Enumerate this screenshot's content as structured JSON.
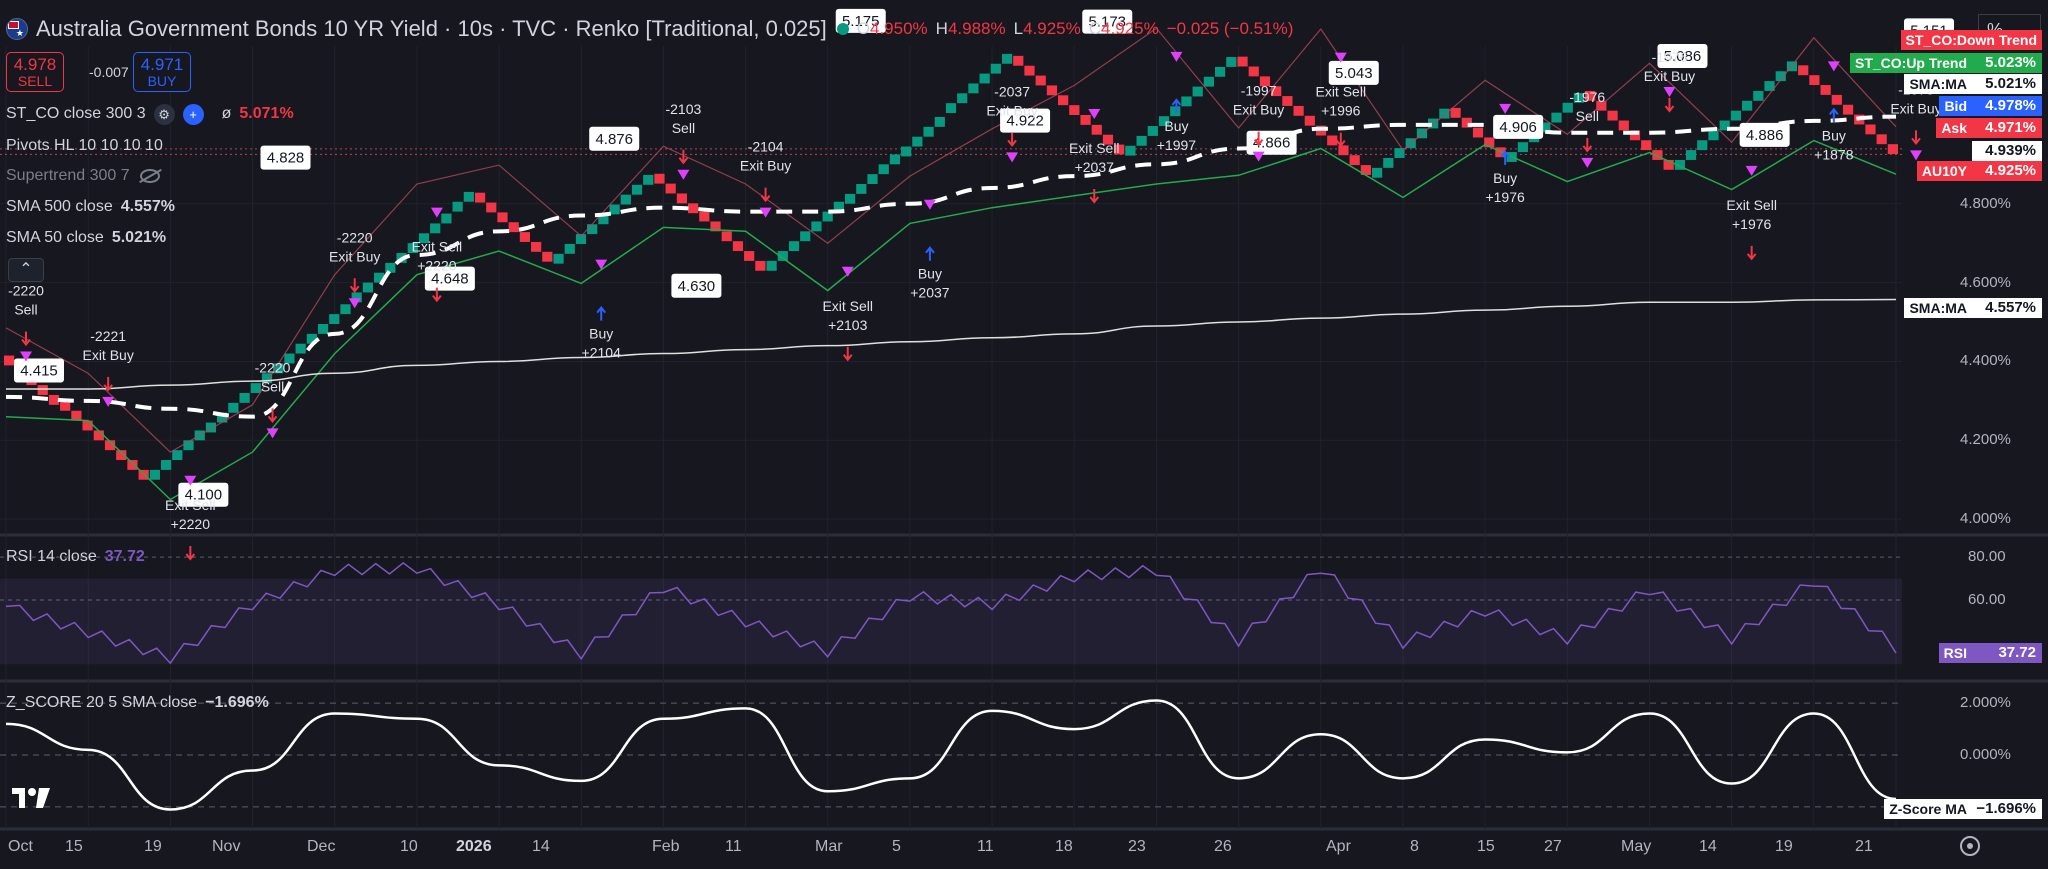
{
  "header": {
    "title": "Australia Government Bonds 10 YR Yield · 10s · TVC · Renko [Traditional, 0.025]",
    "ohlc": [
      {
        "label": "O",
        "value": "4.950%"
      },
      {
        "label": "H",
        "value": "4.988%"
      },
      {
        "label": "L",
        "value": "4.925%"
      },
      {
        "label": "C",
        "value": "4.925%"
      }
    ],
    "change": "−0.025 (−0.51%)"
  },
  "trade_box": {
    "sell_price": "4.978",
    "sell_label": "SELL",
    "spread": "-0.007",
    "buy_price": "4.971",
    "buy_label": "BUY"
  },
  "indicators": [
    {
      "name": "ST_CO close 300 3",
      "value": "5.071%",
      "value_color": "#f23645"
    },
    {
      "name": "Pivots HL 10 10 10 10",
      "value": ""
    },
    {
      "name": "Supertrend 300 7",
      "value": "",
      "muted": true
    },
    {
      "name": "SMA 500 close",
      "value": "4.557%"
    },
    {
      "name": "SMA 50 close",
      "value": "5.021%"
    }
  ],
  "toolbar": {
    "percent_label": "%"
  },
  "price_axis": {
    "ticks": [
      "4.800%",
      "4.600%",
      "4.400%",
      "4.200%",
      "4.000%"
    ],
    "tags": [
      {
        "name": "ST_CO:Down Trend",
        "value": "",
        "name_bg": "#f23645",
        "name_color": "#ffffff"
      },
      {
        "name": "ST_CO:Up Trend",
        "value": "5.023%",
        "name_bg": "#22ab4c",
        "name_color": "#ffffff",
        "value_bg": "#22ab4c"
      },
      {
        "name": "SMA:MA",
        "value": "5.021%",
        "name_bg": "#ffffff",
        "name_color": "#131722",
        "value_bg": "#ffffff",
        "value_color": "#131722"
      },
      {
        "name": "Bid",
        "value": "4.978%",
        "name_bg": "#2962ff",
        "name_color": "#ffffff",
        "value_bg": "#2962ff"
      },
      {
        "name": "Ask",
        "value": "4.971%",
        "name_bg": "#f23645",
        "name_color": "#ffffff",
        "value_bg": "#f23645"
      },
      {
        "name": "",
        "value": "4.939%",
        "value_bg": "#ffffff",
        "value_color": "#131722"
      },
      {
        "name": "AU10Y",
        "value": "4.925%",
        "name_bg": "#f23645",
        "name_color": "#ffffff",
        "value_bg": "#f23645"
      },
      {
        "name": "SMA:MA",
        "value": "4.557%",
        "name_bg": "#ffffff",
        "name_color": "#131722",
        "value_bg": "#ffffff",
        "value_color": "#131722"
      }
    ]
  },
  "rsi_pane": {
    "label": "RSI 14 close",
    "value": "37.72",
    "ticks": [
      "80.00",
      "60.00"
    ],
    "tag_name": "RSI",
    "tag_value": "37.72"
  },
  "zscore_pane": {
    "label": "Z_SCORE 20 5 SMA close",
    "value": "−1.696%",
    "ticks": [
      "2.000%",
      "0.000%",
      "−2.000%"
    ],
    "tag_name": "Z-Score MA",
    "tag_value": "−1.696%"
  },
  "time_axis": {
    "labels": [
      {
        "text": "Oct",
        "bold": false
      },
      {
        "text": "15",
        "bold": false
      },
      {
        "text": "19",
        "bold": false
      },
      {
        "text": "Nov",
        "bold": false
      },
      {
        "text": "Dec",
        "bold": false
      },
      {
        "text": "10",
        "bold": false
      },
      {
        "text": "2026",
        "bold": true
      },
      {
        "text": "14",
        "bold": false
      },
      {
        "text": "Feb",
        "bold": false
      },
      {
        "text": "11",
        "bold": false
      },
      {
        "text": "Mar",
        "bold": false
      },
      {
        "text": "5",
        "bold": false
      },
      {
        "text": "11",
        "bold": false
      },
      {
        "text": "18",
        "bold": false
      },
      {
        "text": "23",
        "bold": false
      },
      {
        "text": "26",
        "bold": false
      },
      {
        "text": "Apr",
        "bold": false
      },
      {
        "text": "8",
        "bold": false
      },
      {
        "text": "15",
        "bold": false
      },
      {
        "text": "27",
        "bold": false
      },
      {
        "text": "May",
        "bold": false
      },
      {
        "text": "14",
        "bold": false
      },
      {
        "text": "19",
        "bold": false
      },
      {
        "text": "21",
        "bold": false
      }
    ]
  },
  "chart_data": [
    {
      "type": "line",
      "title": "Australia Government Bonds 10 YR Yield · 10s · TVC · Renko [Traditional, 0.025]",
      "x": [
        "Oct",
        "15",
        "19",
        "Nov",
        "Dec",
        "10",
        "2026",
        "14",
        "Feb",
        "11",
        "Mar",
        "5",
        "11",
        "18",
        "23",
        "26",
        "Apr",
        "8",
        "15",
        "27",
        "May",
        "14",
        "19",
        "21"
      ],
      "series": [
        {
          "name": "AU10Y Renko close",
          "values": [
            4.415,
            4.3,
            4.1,
            4.22,
            4.55,
            4.78,
            4.828,
            4.648,
            4.876,
            4.78,
            4.63,
            4.8,
            4.92,
            5.03,
            5.175,
            4.922,
            5.173,
            4.866,
            5.043,
            4.906,
            5.086,
            4.886,
            5.151,
            4.925
          ]
        },
        {
          "name": "SMA 50 close",
          "values": [
            4.31,
            4.3,
            4.28,
            4.26,
            4.47,
            4.67,
            4.73,
            4.77,
            4.79,
            4.78,
            4.78,
            4.8,
            4.84,
            4.87,
            4.9,
            4.94,
            4.99,
            5.0,
            5.0,
            4.98,
            4.98,
            4.99,
            5.01,
            5.021
          ]
        },
        {
          "name": "SMA 500 close",
          "values": [
            4.33,
            4.33,
            4.34,
            4.35,
            4.37,
            4.39,
            4.4,
            4.41,
            4.42,
            4.43,
            4.44,
            4.45,
            4.46,
            4.47,
            4.49,
            4.5,
            4.51,
            4.52,
            4.53,
            4.54,
            4.55,
            4.55,
            4.556,
            4.557
          ]
        }
      ],
      "ylim": [
        3.97,
        5.2
      ],
      "annotations": [
        "4.415",
        "4.100",
        "4.828",
        "4.648",
        "4.876",
        "4.630",
        "5.175",
        "4.922",
        "5.173",
        "4.866",
        "5.043",
        "4.906",
        "5.086",
        "4.886",
        "5.151"
      ],
      "trade_labels": [
        {
          "text": "-2220 Sell"
        },
        {
          "text": "-2221 Exit Buy"
        },
        {
          "text": "Exit Sell +2220"
        },
        {
          "text": "-2220 Sell"
        },
        {
          "text": "-2220 Exit Buy"
        },
        {
          "text": "Exit Sell +2220"
        },
        {
          "text": "Buy +2104"
        },
        {
          "text": "-2103 Sell"
        },
        {
          "text": "-2104 Exit Buy"
        },
        {
          "text": "Exit Sell +2103"
        },
        {
          "text": "Buy +2037"
        },
        {
          "text": "-2037 Exit Buy"
        },
        {
          "text": "Exit Sell +2037"
        },
        {
          "text": "Buy +1997"
        },
        {
          "text": "-1997 Exit Buy"
        },
        {
          "text": "Exit Sell +1996"
        },
        {
          "text": "Buy +1976"
        },
        {
          "text": "-1976 Sell"
        },
        {
          "text": "-1976 Exit Buy"
        },
        {
          "text": "Exit Sell +1976"
        },
        {
          "text": "Buy +1878"
        },
        {
          "text": "-1878 Exit Buy"
        }
      ]
    },
    {
      "type": "line",
      "title": "RSI 14 close",
      "x": [
        "Oct",
        "15",
        "19",
        "Nov",
        "Dec",
        "10",
        "2026",
        "14",
        "Feb",
        "11",
        "Mar",
        "5",
        "11",
        "18",
        "23",
        "26",
        "Apr",
        "8",
        "15",
        "27",
        "May",
        "14",
        "19",
        "21"
      ],
      "series": [
        {
          "name": "RSI 14 close",
          "values": [
            57,
            45,
            33,
            58,
            74,
            75,
            58,
            35,
            66,
            50,
            36,
            62,
            58,
            71,
            74,
            41,
            75,
            40,
            55,
            42,
            65,
            42,
            69,
            37.72
          ]
        }
      ],
      "ylim": [
        25,
        88
      ]
    },
    {
      "type": "line",
      "title": "Z_SCORE 20 5 SMA close",
      "x": [
        "Oct",
        "15",
        "19",
        "Nov",
        "Dec",
        "10",
        "2026",
        "14",
        "Feb",
        "11",
        "Mar",
        "5",
        "11",
        "18",
        "23",
        "26",
        "Apr",
        "8",
        "15",
        "27",
        "May",
        "14",
        "19",
        "21"
      ],
      "series": [
        {
          "name": "Z_SCORE 20 5 SMA close",
          "values": [
            1.2,
            0.2,
            -2.1,
            -0.6,
            1.6,
            1.4,
            -0.4,
            -1.0,
            1.4,
            1.8,
            -1.4,
            -0.9,
            1.7,
            1.0,
            2.1,
            -0.9,
            0.8,
            -0.9,
            0.6,
            0.1,
            1.6,
            -1.1,
            1.6,
            -1.696
          ]
        }
      ],
      "ylim": [
        -2.7,
        2.7
      ]
    }
  ]
}
